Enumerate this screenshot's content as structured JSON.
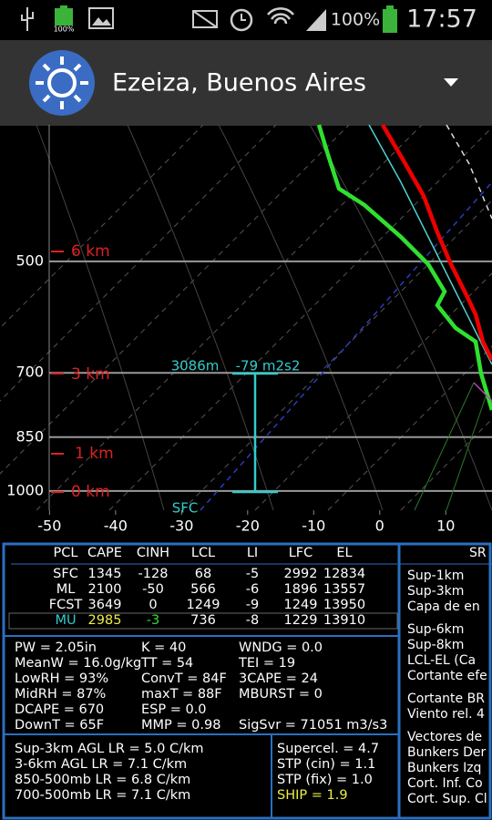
{
  "status_bar": {
    "battery_small": "100%",
    "battery": "100%",
    "time": "17:57"
  },
  "app_bar": {
    "title": "Ezeiza, Buenos Aires"
  },
  "chart_data": {
    "type": "skew-t",
    "xlim": [
      -57.5,
      17
    ],
    "xticks": [
      -50,
      -40,
      -30,
      -20,
      -10,
      0,
      10
    ],
    "ylim": [
      1060,
      331
    ],
    "yticks": [
      500,
      700,
      850,
      1000
    ],
    "y_log": true,
    "grid": true,
    "height_labels": [
      "6 km",
      "3 km",
      "1 km",
      "0 km"
    ],
    "annotations": [
      "3086m",
      "-79 m2s2",
      "SFC"
    ]
  },
  "parcel_table": {
    "columns": [
      "PCL",
      "CAPE",
      "CINH",
      "LCL",
      "LI",
      "LFC",
      "EL"
    ],
    "rows": [
      [
        "SFC",
        "1345",
        "-128",
        "68",
        "-5",
        "2992",
        "12834"
      ],
      [
        "ML",
        "2100",
        "-50",
        "566",
        "-6",
        "1896",
        "13557"
      ],
      [
        "FCST",
        "3649",
        "0",
        "1249",
        "-9",
        "1249",
        "13950"
      ],
      [
        "MU",
        "2985",
        "-3",
        "736",
        "-8",
        "1229",
        "13910"
      ]
    ]
  },
  "indices": {
    "col1": [
      "PW = 2.05in",
      "MeanW = 16.0g/kg",
      "LowRH = 93%",
      "MidRH = 87%",
      "DCAPE = 670",
      "DownT = 65F"
    ],
    "col2": [
      "K = 40",
      "TT = 54",
      "ConvT = 84F",
      "maxT = 88F",
      "ESP = 0.0",
      "MMP = 0.98"
    ],
    "col3": [
      "WNDG = 0.0",
      "TEI = 19",
      "3CAPE = 24",
      "MBURST = 0",
      "SigSvr = 71051 m3/s3"
    ]
  },
  "lapse_rates": [
    "Sup-3km AGL LR = 5.0 C/km",
    "3-6km AGL LR = 7.1 C/km",
    "850-500mb LR = 6.8 C/km",
    "700-500mb LR = 7.1 C/km"
  ],
  "composites": [
    "Supercel. = 4.7",
    "STP (cin) = 1.1",
    "STP (fix) = 1.0",
    "SHIP = 1.9"
  ],
  "side_panel": {
    "title": "SR",
    "lines": [
      "Sup-1km",
      "Sup-3km",
      "Capa de en",
      "Sup-6km",
      "Sup-8km",
      "LCL-EL (Ca",
      "Cortante efe",
      "Cortante BR",
      "Viento rel. 4",
      "Vectores de",
      "Bunkers Der",
      "Bunkers Izq",
      "Cort. Inf. Co",
      "Cort. Sup. Cl"
    ]
  }
}
